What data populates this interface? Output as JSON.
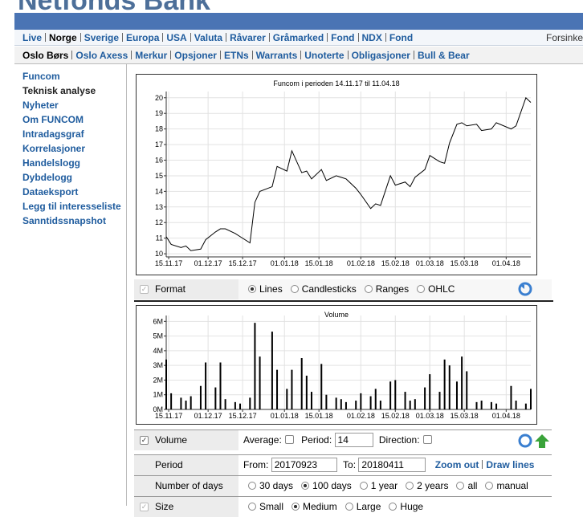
{
  "header": {
    "title": "Netfonds Bank",
    "delay_note": "Forsinke"
  },
  "nav_primary": [
    "Live",
    "Norge",
    "Sverige",
    "Europa",
    "USA",
    "Valuta",
    "Råvarer",
    "Gråmarked",
    "Fond",
    "NDX",
    "Fond"
  ],
  "nav_secondary": [
    "Oslo Børs",
    "Oslo Axess",
    "Merkur",
    "Opsjoner",
    "ETNs",
    "Warrants",
    "Unoterte",
    "Obligasjoner",
    "Bull & Bear"
  ],
  "sidebar": [
    "Funcom",
    "Teknisk analyse",
    "Nyheter",
    "Om FUNCOM",
    "Intradagsgraf",
    "Korrelasjoner",
    "Handelslogg",
    "Dybdelogg",
    "Dataeksport",
    "Legg til interesseliste",
    "Sanntidssnapshot"
  ],
  "price_chart": {
    "type": "line",
    "title": "Funcom i perioden 14.11.17 til 11.04.18",
    "color": "#000000",
    "grid": true,
    "x": [
      "14.11.17",
      "16.11.17",
      "20.11.17",
      "22.11.17",
      "24.11.17",
      "28.11.17",
      "30.11.17",
      "04.12.17",
      "06.12.17",
      "08.12.17",
      "12.12.17",
      "14.12.17",
      "18.12.17",
      "20.12.17",
      "22.12.17",
      "27.12.17",
      "29.12.17",
      "02.01.18",
      "04.01.18",
      "08.01.18",
      "10.01.18",
      "12.01.18",
      "16.01.18",
      "18.01.18",
      "22.01.18",
      "24.01.18",
      "26.01.18",
      "30.01.18",
      "01.02.18",
      "05.02.18",
      "07.02.18",
      "09.02.18",
      "13.02.18",
      "15.02.18",
      "19.02.18",
      "21.02.18",
      "23.02.18",
      "27.02.18",
      "01.03.18",
      "05.03.18",
      "07.03.18",
      "09.03.18",
      "12.03.18",
      "14.03.18",
      "16.03.18",
      "20.03.18",
      "22.03.18",
      "26.03.18",
      "28.03.18",
      "03.04.18",
      "05.04.18",
      "09.04.18",
      "11.04.18"
    ],
    "values": [
      11.1,
      10.6,
      10.4,
      10.5,
      10.2,
      10.3,
      10.9,
      11.4,
      11.6,
      11.6,
      11.3,
      11.1,
      10.7,
      13.3,
      14.0,
      14.3,
      15.6,
      15.3,
      16.6,
      15.2,
      15.3,
      14.8,
      15.4,
      14.7,
      15.0,
      14.9,
      14.8,
      14.2,
      13.8,
      12.9,
      13.2,
      13.1,
      15.0,
      14.4,
      14.6,
      14.3,
      14.9,
      15.4,
      16.3,
      15.9,
      15.8,
      17.1,
      18.3,
      18.4,
      18.2,
      18.3,
      17.9,
      18.0,
      18.4,
      18.0,
      18.2,
      20.0,
      19.7
    ],
    "xlim": [
      "14.11.17",
      "11.04.18"
    ],
    "xticks": [
      "15.11.17",
      "01.12.17",
      "15.12.17",
      "01.01.18",
      "15.01.18",
      "01.02.18",
      "15.02.18",
      "01.03.18",
      "15.03.18",
      "01.04.18"
    ],
    "ylim": [
      9.8,
      20.4
    ],
    "yticks": [
      10,
      11,
      12,
      13,
      14,
      15,
      16,
      17,
      18,
      19,
      20
    ]
  },
  "volume_chart": {
    "type": "bar",
    "title": "Volume",
    "color": "#000000",
    "grid": true,
    "x": [
      "14.11.17",
      "16.11.17",
      "20.11.17",
      "22.11.17",
      "24.11.17",
      "28.11.17",
      "30.11.17",
      "04.12.17",
      "06.12.17",
      "08.12.17",
      "12.12.17",
      "14.12.17",
      "18.12.17",
      "20.12.17",
      "22.12.17",
      "27.12.17",
      "29.12.17",
      "02.01.18",
      "04.01.18",
      "08.01.18",
      "10.01.18",
      "12.01.18",
      "16.01.18",
      "18.01.18",
      "22.01.18",
      "24.01.18",
      "26.01.18",
      "30.01.18",
      "01.02.18",
      "05.02.18",
      "07.02.18",
      "09.02.18",
      "13.02.18",
      "15.02.18",
      "19.02.18",
      "21.02.18",
      "23.02.18",
      "27.02.18",
      "01.03.18",
      "05.03.18",
      "07.03.18",
      "09.03.18",
      "12.03.18",
      "14.03.18",
      "16.03.18",
      "20.03.18",
      "22.03.18",
      "26.03.18",
      "28.03.18",
      "03.04.18",
      "05.04.18",
      "09.04.18",
      "11.04.18"
    ],
    "values": [
      3400000,
      1100000,
      800000,
      600000,
      900000,
      1600000,
      3200000,
      1500000,
      3200000,
      700000,
      500000,
      400000,
      800000,
      5900000,
      3600000,
      5300000,
      2700000,
      1400000,
      2700000,
      3500000,
      2300000,
      1200000,
      3100000,
      1000000,
      800000,
      700000,
      500000,
      600000,
      1100000,
      900000,
      1400000,
      600000,
      1900000,
      2000000,
      1200000,
      600000,
      700000,
      1500000,
      2400000,
      1200000,
      3400000,
      3000000,
      1900000,
      3600000,
      2600000,
      500000,
      600000,
      500000,
      400000,
      1600000,
      600000,
      400000,
      1400000
    ],
    "xlim": [
      "14.11.17",
      "11.04.18"
    ],
    "xticks": [
      "15.11.17",
      "01.12.17",
      "15.12.17",
      "01.01.18",
      "15.01.18",
      "01.02.18",
      "15.02.18",
      "01.03.18",
      "15.03.18",
      "01.04.18"
    ],
    "ylim": [
      0,
      6400000
    ],
    "yticks": [
      {
        "value": 0,
        "label": "0M"
      },
      {
        "value": 1000000,
        "label": "1M"
      },
      {
        "value": 2000000,
        "label": "2M"
      },
      {
        "value": 3000000,
        "label": "3M"
      },
      {
        "value": 4000000,
        "label": "4M"
      },
      {
        "value": 5000000,
        "label": "5M"
      },
      {
        "value": 6000000,
        "label": "6M"
      }
    ]
  },
  "format_row": {
    "label": "Format",
    "options": [
      "Lines",
      "Candlesticks",
      "Ranges",
      "OHLC"
    ]
  },
  "volume_row": {
    "label": "Volume",
    "average": "Average:",
    "period": "Period:",
    "period_value": "14",
    "direction": "Direction:"
  },
  "period_row": {
    "label": "Period",
    "from": "From:",
    "from_value": "20170923",
    "to": "To:",
    "to_value": "20180411",
    "links": [
      "Zoom out",
      "Draw lines"
    ]
  },
  "days_row": {
    "label": "Number of days",
    "options": [
      "30 days",
      "100 days",
      "1 year",
      "2 years",
      "all",
      "manual"
    ]
  },
  "size_row": {
    "label": "Size",
    "options": [
      "Small",
      "Medium",
      "Large",
      "Huge"
    ]
  }
}
